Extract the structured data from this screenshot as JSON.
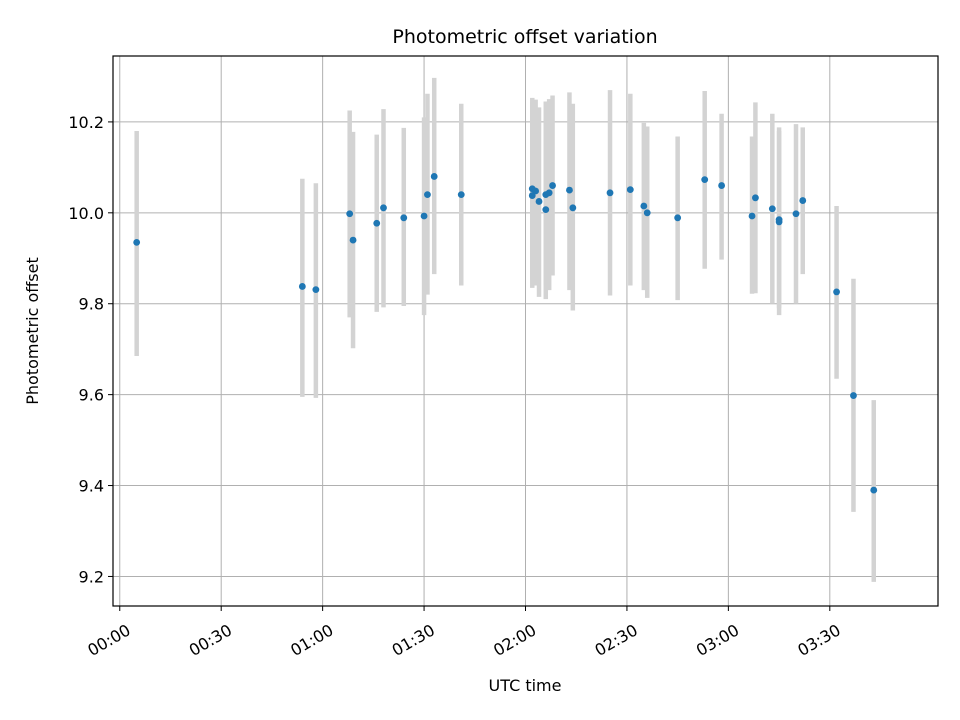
{
  "chart_data": {
    "type": "scatter",
    "title": "Photometric offset variation",
    "xlabel": "UTC time",
    "ylabel": "Photometric offset",
    "x_unit": "UTC time (HH:MM)",
    "xlim": [
      "-00:02",
      "04:02"
    ],
    "ylim": [
      9.135,
      10.345
    ],
    "grid": true,
    "x_ticks": [
      "00:00",
      "00:30",
      "01:00",
      "01:30",
      "02:00",
      "02:30",
      "03:00",
      "03:30"
    ],
    "y_ticks": [
      "9.2",
      "9.4",
      "9.6",
      "9.8",
      "10.0",
      "10.2"
    ],
    "colors": {
      "point": "#1f77b4",
      "errorbar": "#d3d3d3",
      "grid": "#b0b0b0"
    },
    "points": [
      {
        "t": "00:05",
        "y": 9.935,
        "lo": 9.685,
        "hi": 10.18
      },
      {
        "t": "00:54",
        "y": 9.838,
        "lo": 9.595,
        "hi": 10.075
      },
      {
        "t": "00:58",
        "y": 9.831,
        "lo": 9.593,
        "hi": 10.065
      },
      {
        "t": "01:08",
        "y": 9.998,
        "lo": 9.77,
        "hi": 10.225
      },
      {
        "t": "01:09",
        "y": 9.94,
        "lo": 9.702,
        "hi": 10.178
      },
      {
        "t": "01:16",
        "y": 9.977,
        "lo": 9.782,
        "hi": 10.172
      },
      {
        "t": "01:18",
        "y": 10.011,
        "lo": 9.792,
        "hi": 10.228
      },
      {
        "t": "01:24",
        "y": 9.989,
        "lo": 9.795,
        "hi": 10.187
      },
      {
        "t": "01:30",
        "y": 9.993,
        "lo": 9.775,
        "hi": 10.21
      },
      {
        "t": "01:31",
        "y": 10.04,
        "lo": 9.82,
        "hi": 10.262
      },
      {
        "t": "01:33",
        "y": 10.08,
        "lo": 9.865,
        "hi": 10.297
      },
      {
        "t": "01:41",
        "y": 10.04,
        "lo": 9.84,
        "hi": 10.24
      },
      {
        "t": "02:02",
        "y": 10.053,
        "lo": 9.852,
        "hi": 10.253
      },
      {
        "t": "02:02",
        "y": 10.038,
        "lo": 9.835,
        "hi": 10.243
      },
      {
        "t": "02:03",
        "y": 10.048,
        "lo": 9.84,
        "hi": 10.249
      },
      {
        "t": "02:04",
        "y": 10.025,
        "lo": 9.815,
        "hi": 10.232
      },
      {
        "t": "02:06",
        "y": 10.007,
        "lo": 9.81,
        "hi": 10.208
      },
      {
        "t": "02:06",
        "y": 10.04,
        "lo": 9.84,
        "hi": 10.245
      },
      {
        "t": "02:07",
        "y": 10.044,
        "lo": 9.83,
        "hi": 10.25
      },
      {
        "t": "02:08",
        "y": 10.06,
        "lo": 9.862,
        "hi": 10.258
      },
      {
        "t": "02:13",
        "y": 10.05,
        "lo": 9.83,
        "hi": 10.265
      },
      {
        "t": "02:14",
        "y": 10.011,
        "lo": 9.785,
        "hi": 10.24
      },
      {
        "t": "02:25",
        "y": 10.044,
        "lo": 9.818,
        "hi": 10.27
      },
      {
        "t": "02:31",
        "y": 10.051,
        "lo": 9.84,
        "hi": 10.262
      },
      {
        "t": "02:35",
        "y": 10.015,
        "lo": 9.83,
        "hi": 10.198
      },
      {
        "t": "02:36",
        "y": 10.0,
        "lo": 9.813,
        "hi": 10.19
      },
      {
        "t": "02:45",
        "y": 9.989,
        "lo": 9.808,
        "hi": 10.168
      },
      {
        "t": "02:53",
        "y": 10.073,
        "lo": 9.877,
        "hi": 10.268
      },
      {
        "t": "02:58",
        "y": 10.06,
        "lo": 9.897,
        "hi": 10.218
      },
      {
        "t": "03:07",
        "y": 9.993,
        "lo": 9.822,
        "hi": 10.168
      },
      {
        "t": "03:08",
        "y": 10.033,
        "lo": 9.823,
        "hi": 10.243
      },
      {
        "t": "03:13",
        "y": 10.009,
        "lo": 9.8,
        "hi": 10.218
      },
      {
        "t": "03:15",
        "y": 9.98,
        "lo": 9.775,
        "hi": 10.188
      },
      {
        "t": "03:15",
        "y": 9.985,
        "lo": 9.79,
        "hi": 10.18
      },
      {
        "t": "03:20",
        "y": 9.998,
        "lo": 9.8,
        "hi": 10.195
      },
      {
        "t": "03:22",
        "y": 10.027,
        "lo": 9.865,
        "hi": 10.188
      },
      {
        "t": "03:32",
        "y": 9.826,
        "lo": 9.635,
        "hi": 10.015
      },
      {
        "t": "03:37",
        "y": 9.598,
        "lo": 9.342,
        "hi": 9.855
      },
      {
        "t": "03:43",
        "y": 9.39,
        "lo": 9.188,
        "hi": 9.588
      }
    ]
  }
}
